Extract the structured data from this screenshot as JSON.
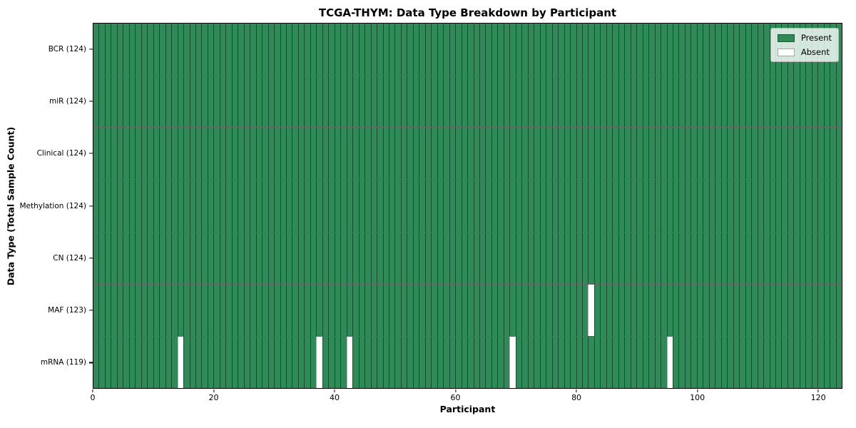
{
  "chart_data": {
    "type": "heatmap",
    "title": "TCGA-THYM: Data Type Breakdown by Participant",
    "xlabel": "Participant",
    "ylabel": "Data Type (Total Sample Count)",
    "n_participants": 124,
    "xlim": [
      0,
      124
    ],
    "x_ticks": [
      0,
      20,
      40,
      60,
      80,
      100,
      120
    ],
    "grid": false,
    "legend": {
      "position": "upper right",
      "items": [
        {
          "label": "Present",
          "color": "#2e8b57"
        },
        {
          "label": "Absent",
          "color": "#ffffff"
        }
      ]
    },
    "rows": [
      {
        "data_type": "BCR",
        "tick_label": "BCR (124)",
        "present_count": 124,
        "total": 124,
        "absent_participants": []
      },
      {
        "data_type": "miR",
        "tick_label": "miR (124)",
        "present_count": 124,
        "total": 124,
        "absent_participants": []
      },
      {
        "data_type": "Clinical",
        "tick_label": "Clinical (124)",
        "present_count": 124,
        "total": 124,
        "absent_participants": []
      },
      {
        "data_type": "Methylation",
        "tick_label": "Methylation (124)",
        "present_count": 124,
        "total": 124,
        "absent_participants": []
      },
      {
        "data_type": "CN",
        "tick_label": "CN (124)",
        "present_count": 124,
        "total": 124,
        "absent_participants": []
      },
      {
        "data_type": "MAF",
        "tick_label": "MAF (123)",
        "present_count": 123,
        "total": 124,
        "absent_participants": [
          82
        ]
      },
      {
        "data_type": "mRNA",
        "tick_label": "mRNA (119)",
        "present_count": 119,
        "total": 124,
        "absent_participants": [
          14,
          37,
          42,
          69,
          95
        ]
      }
    ],
    "colors": {
      "present": "#2e8b57",
      "absent": "#ffffff",
      "bar_edge": "rgba(0,0,0,0.45)",
      "row_divider": "rgba(0,0,0,0.6)",
      "plot_border": "#000000",
      "legend_border": "#b5b5b5",
      "legend_bg": "rgba(255,255,255,0.8)"
    }
  }
}
